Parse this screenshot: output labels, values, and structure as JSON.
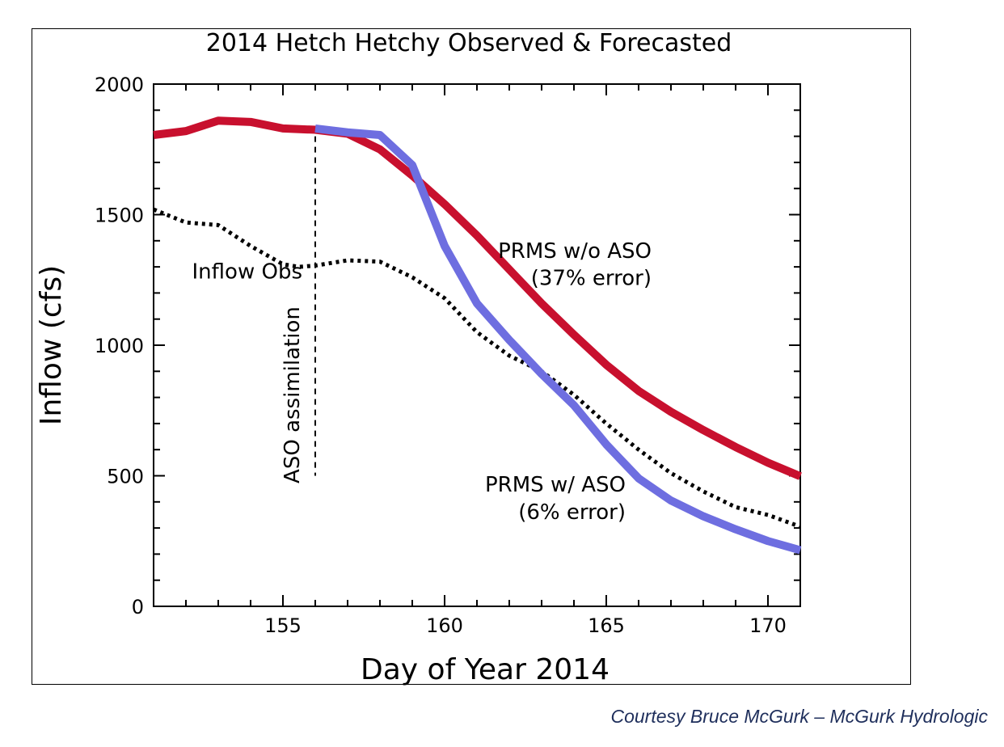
{
  "credit": "Courtesy Bruce McGurk – McGurk Hydrologic",
  "chart_data": {
    "type": "line",
    "title": "2014 Hetch Hetchy Observed & Forecasted",
    "xlabel": "Day of Year 2014",
    "ylabel": "Inflow (cfs)",
    "xlim": [
      151,
      171
    ],
    "ylim": [
      0,
      2000
    ],
    "xticks": [
      155,
      160,
      165,
      170
    ],
    "yticks": [
      0,
      500,
      1000,
      1500,
      2000
    ],
    "grid": false,
    "series": [
      {
        "key": "prms_wo_aso",
        "color": "#c8102e",
        "style": "solid",
        "x": [
          151,
          152,
          153,
          154,
          155,
          156,
          157,
          158,
          159,
          160,
          161,
          162,
          163,
          164,
          165,
          166,
          167,
          168,
          169,
          170,
          171
        ],
        "y": [
          1805,
          1820,
          1860,
          1855,
          1830,
          1825,
          1810,
          1750,
          1650,
          1540,
          1420,
          1290,
          1160,
          1040,
          925,
          825,
          745,
          675,
          610,
          550,
          498
        ]
      },
      {
        "key": "prms_w_aso",
        "color": "#6e6ee0",
        "style": "solid",
        "x": [
          156,
          157,
          158,
          159,
          160,
          161,
          162,
          163,
          164,
          165,
          166,
          167,
          168,
          169,
          170,
          171
        ],
        "y": [
          1830,
          1815,
          1805,
          1690,
          1380,
          1160,
          1020,
          890,
          770,
          620,
          490,
          405,
          345,
          295,
          250,
          215
        ]
      },
      {
        "key": "inflow_obs",
        "color": "#000000",
        "style": "dotted",
        "x": [
          151,
          152,
          153,
          154,
          155,
          155.5,
          156,
          157,
          158,
          159,
          160,
          161,
          162,
          163,
          164,
          165,
          166,
          167,
          168,
          169,
          170,
          171
        ],
        "y": [
          1520,
          1470,
          1460,
          1380,
          1310,
          1300,
          1305,
          1325,
          1320,
          1260,
          1180,
          1050,
          960,
          900,
          810,
          700,
          600,
          510,
          440,
          380,
          350,
          305
        ]
      }
    ],
    "marker": {
      "x": 156,
      "y_from": 500,
      "y_to": 1800,
      "label": "ASO assimilation"
    },
    "annotations": [
      {
        "text": "Inflow Obs",
        "x": 155.6,
        "y": 1255,
        "anchor": "end"
      },
      {
        "text": "PRMS w/o ASO",
        "x": 166.4,
        "y": 1335,
        "anchor": "end"
      },
      {
        "text": "(37% error)",
        "x": 166.4,
        "y": 1230,
        "anchor": "end"
      },
      {
        "text": "PRMS w/ ASO",
        "x": 165.6,
        "y": 440,
        "anchor": "end"
      },
      {
        "text": "(6% error)",
        "x": 165.6,
        "y": 335,
        "anchor": "end"
      }
    ]
  }
}
